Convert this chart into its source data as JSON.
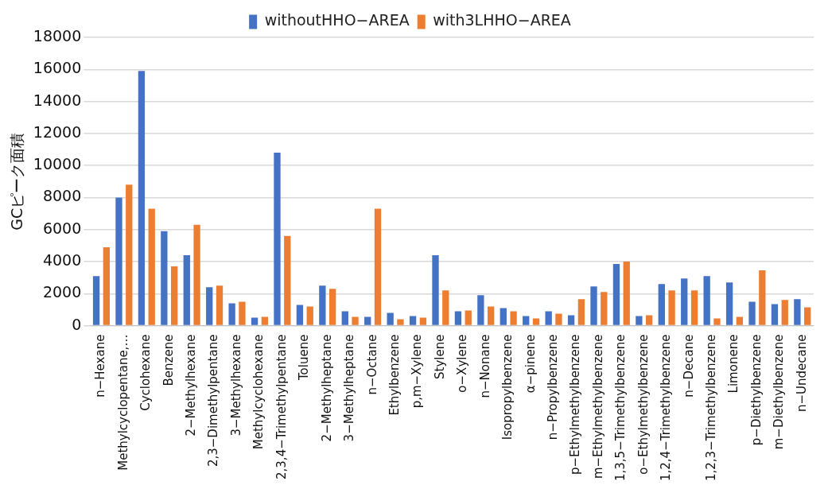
{
  "chart_data": {
    "type": "bar",
    "ylabel": "GCピーク面積",
    "categories": [
      "n−Hexane",
      "Methylcyclopentane,…",
      "Cyclohexane",
      "Benzene",
      "2−Methylhexane",
      "2,3−Dimethylpentane",
      "3−Methylhexane",
      "Methylcyclohexane",
      "2,3,4−Trimethylpentane",
      "Toluene",
      "2−Methylheptane",
      "3−Methylheptane",
      "n−Octane",
      "Ethylbenzene",
      "p,m−Xylene",
      "Stylene",
      "o−Xylene",
      "n−Nonane",
      "Isopropylbenzene",
      "α−pinene",
      "n−Propylbenzene",
      "p−Ethylmethylbenzene",
      "m−Ethylmethylbenzene",
      "1,3,5−Trimethylbenzene",
      "o−Ethylmethylbenzene",
      "1,2,4−Trimethylbenzene",
      "n−Decane",
      "1,2,3−Trimethylbenzene",
      "Limonene",
      "p−Diethylbenzene",
      "m−Diethylbenzene",
      "n−Undecane"
    ],
    "series": [
      {
        "name": "withoutHHO−AREA",
        "color": "#4472c4",
        "values": [
          3100,
          8000,
          15900,
          5900,
          4400,
          2400,
          1400,
          500,
          10800,
          1300,
          2500,
          900,
          550,
          800,
          600,
          4400,
          900,
          1900,
          1100,
          600,
          900,
          650,
          2450,
          3850,
          600,
          2600,
          2950,
          3100,
          2700,
          1500,
          1350,
          1650
        ]
      },
      {
        "name": "with3LHHO−AREA",
        "color": "#ed7d31",
        "values": [
          4900,
          8800,
          7300,
          3700,
          6300,
          2500,
          1500,
          550,
          5600,
          1200,
          2300,
          550,
          7300,
          400,
          500,
          2200,
          950,
          1200,
          900,
          450,
          750,
          1650,
          2100,
          4000,
          650,
          2200,
          2200,
          450,
          550,
          3450,
          1600,
          1150
        ]
      }
    ],
    "ylim": [
      0,
      18000
    ],
    "yticks": [
      0,
      2000,
      4000,
      6000,
      8000,
      10000,
      12000,
      14000,
      16000,
      18000
    ],
    "grid": "y",
    "legend": "top"
  }
}
